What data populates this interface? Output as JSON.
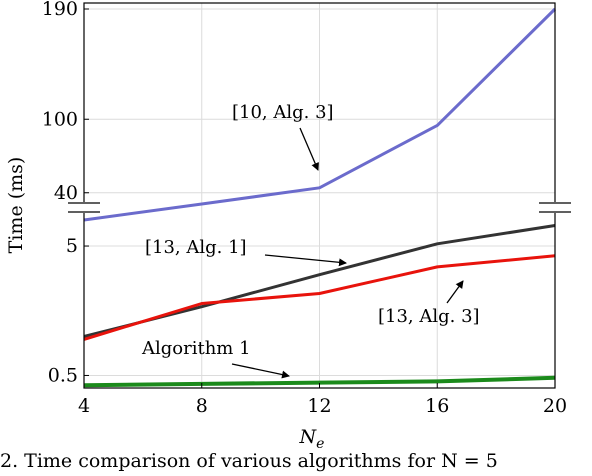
{
  "chart_data": {
    "type": "line",
    "xlabel_base": "N",
    "xlabel_sub": "e",
    "ylabel": "Time (ms)",
    "x": [
      4,
      8,
      12,
      16,
      20
    ],
    "xlim": [
      4,
      20
    ],
    "x_ticks": [
      "4",
      "8",
      "12",
      "16",
      "20"
    ],
    "broken_axis": true,
    "upper_ylim": [
      30,
      190
    ],
    "upper_ticks": [
      {
        "value": 40,
        "label": "40"
      },
      {
        "value": 100,
        "label": "100"
      },
      {
        "value": 190,
        "label": "190"
      }
    ],
    "lower_ylim": [
      0.4,
      9
    ],
    "lower_ticks": [
      {
        "value": 0.5,
        "label": "0.5"
      },
      {
        "value": 5,
        "label": "5"
      }
    ],
    "grid": true,
    "series": [
      {
        "name": "[10, Alg. 3]",
        "panel": "upper",
        "color": "#6b6bcc",
        "values": [
          15,
          25,
          44,
          95,
          190
        ]
      },
      {
        "name": "[13, Alg. 1]",
        "panel": "lower",
        "color": "#333333",
        "values": [
          1.0,
          1.7,
          3.0,
          5.2,
          7.2
        ]
      },
      {
        "name": "[13, Alg. 3]",
        "panel": "lower",
        "color": "#e8130c",
        "values": [
          0.95,
          1.8,
          2.15,
          3.45,
          4.2
        ]
      },
      {
        "name": "Algorithm 1",
        "panel": "lower",
        "color": "#1b8a1b",
        "values": [
          0.42,
          0.43,
          0.44,
          0.45,
          0.48
        ]
      }
    ]
  },
  "caption": "2. Time comparison of various algorithms for N = 5"
}
